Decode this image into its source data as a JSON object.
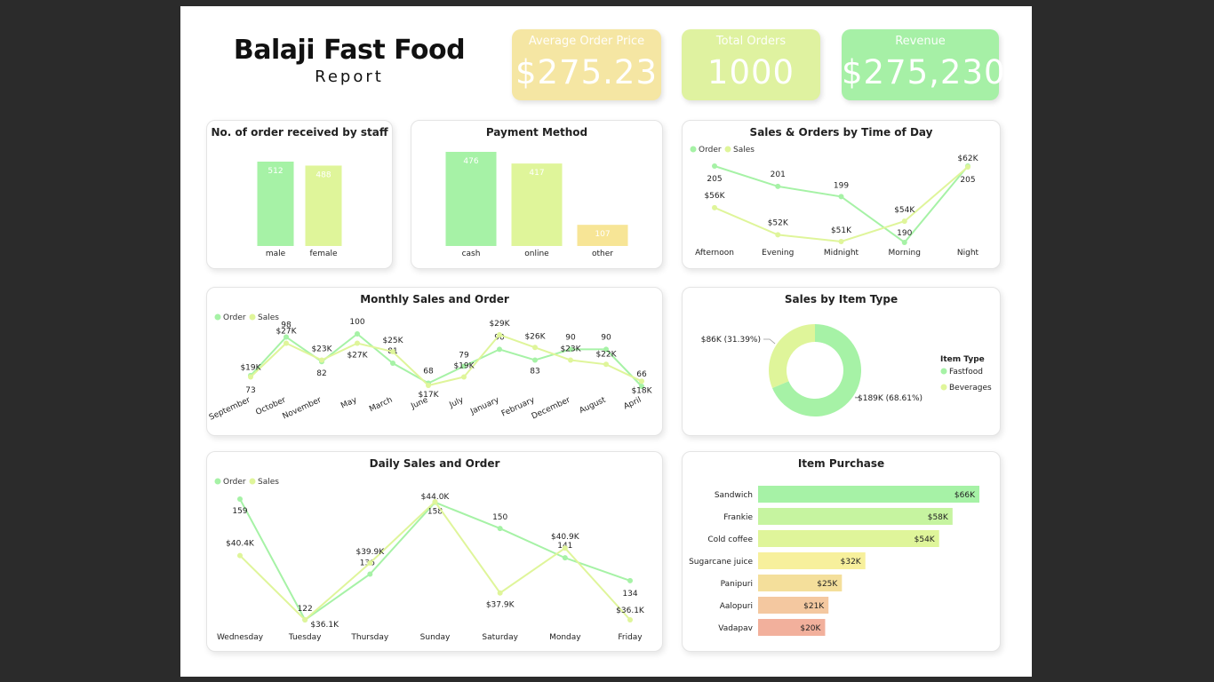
{
  "header": {
    "title": "Balaji Fast Food",
    "subtitle": "Report"
  },
  "kpis": [
    {
      "label": "Average Order Price",
      "value": "$275.23",
      "color": "#f5e6a3"
    },
    {
      "label": "Total Orders",
      "value": "1000",
      "color": "#dff2a0"
    },
    {
      "label": "Revenue",
      "value": "$275,230",
      "color": "#a6f0a6"
    }
  ],
  "colors": {
    "order": "#a6f2a6",
    "sales": "#dff59a"
  },
  "legend": {
    "order": "Order",
    "sales": "Sales"
  },
  "chart_data": [
    {
      "id": "staff",
      "type": "bar",
      "title": "No. of order received by staff",
      "categories": [
        "male",
        "female"
      ],
      "values": [
        512,
        488
      ],
      "labels": [
        "512",
        "488"
      ],
      "colors": [
        "#a6f2a6",
        "#dff59a"
      ]
    },
    {
      "id": "payment",
      "type": "bar",
      "title": "Payment Method",
      "categories": [
        "cash",
        "online",
        "other"
      ],
      "values": [
        476,
        417,
        107
      ],
      "labels": [
        "476",
        "417",
        "107"
      ],
      "colors": [
        "#a6f2a6",
        "#dff59a",
        "#f7e596"
      ]
    },
    {
      "id": "timeofday",
      "type": "line",
      "title": "Sales & Orders by Time of Day",
      "categories": [
        "Afternoon",
        "Evening",
        "Midnight",
        "Morning",
        "Night"
      ],
      "series": [
        {
          "name": "Order",
          "values": [
            205,
            201,
            199,
            190,
            205
          ],
          "labels": [
            "205",
            "201",
            "199",
            "190",
            "205"
          ]
        },
        {
          "name": "Sales",
          "values": [
            56,
            52,
            51,
            54,
            62
          ],
          "labels": [
            "$56K",
            "$52K",
            "$51K",
            "$54K",
            "$62K"
          ]
        }
      ]
    },
    {
      "id": "monthly",
      "type": "line",
      "title": "Monthly Sales and Order",
      "categories": [
        "September",
        "October",
        "November",
        "May",
        "March",
        "June",
        "July",
        "January",
        "February",
        "December",
        "August",
        "April"
      ],
      "series": [
        {
          "name": "Order",
          "values": [
            73,
            98,
            82,
            100,
            81,
            68,
            79,
            90,
            83,
            90,
            90,
            66
          ],
          "labels": [
            "73",
            "98",
            "82",
            "100",
            "81",
            "68",
            "79",
            "90",
            "83",
            "90",
            "90",
            "66"
          ]
        },
        {
          "name": "Sales",
          "values": [
            19,
            27,
            23,
            27,
            25,
            17,
            19,
            29,
            26,
            23,
            22,
            18
          ],
          "labels": [
            "$19K",
            "$27K",
            "$23K",
            "$27K",
            "$25K",
            "$17K",
            "$19K",
            "$29K",
            "$26K",
            "$23K",
            "$22K",
            "$18K"
          ]
        }
      ]
    },
    {
      "id": "itemtype",
      "type": "pie",
      "title": "Sales by Item Type",
      "legend_title": "Item Type",
      "categories": [
        "Fastfood",
        "Beverages"
      ],
      "values": [
        189,
        86
      ],
      "labels": [
        "$189K (68.61%)",
        "$86K (31.39%)"
      ],
      "colors": [
        "#a6f2a6",
        "#dff59a"
      ]
    },
    {
      "id": "daily",
      "type": "line",
      "title": "Daily Sales and Order",
      "categories": [
        "Wednesday",
        "Tuesday",
        "Thursday",
        "Sunday",
        "Saturday",
        "Monday",
        "Friday"
      ],
      "series": [
        {
          "name": "Order",
          "values": [
            159,
            122,
            136,
            158,
            150,
            141,
            134
          ],
          "labels": [
            "159",
            "122",
            "136",
            "158",
            "150",
            "141",
            "134"
          ]
        },
        {
          "name": "Sales",
          "values": [
            40.4,
            36.1,
            39.9,
            44.0,
            37.9,
            40.9,
            36.1
          ],
          "labels": [
            "$40.4K",
            "$36.1K",
            "$39.9K",
            "$44.0K",
            "$37.9K",
            "$40.9K",
            "$36.1K"
          ]
        }
      ]
    },
    {
      "id": "items",
      "type": "bar",
      "title": "Item Purchase",
      "categories": [
        "Sandwich",
        "Frankie",
        "Cold coffee",
        "Sugarcane juice",
        "Panipuri",
        "Aalopuri",
        "Vadapav"
      ],
      "values": [
        66,
        58,
        54,
        32,
        25,
        21,
        20
      ],
      "labels": [
        "$66K",
        "$58K",
        "$54K",
        "$32K",
        "$25K",
        "$21K",
        "$20K"
      ],
      "colors": [
        "#a6f2a6",
        "#c6f4a0",
        "#dff59a",
        "#f7f09c",
        "#f4df9b",
        "#f4c8a0",
        "#f2b09c"
      ]
    }
  ]
}
